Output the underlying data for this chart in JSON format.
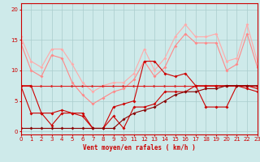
{
  "xlabel": "Vent moyen/en rafales ( km/h )",
  "background_color": "#ceeaea",
  "grid_color": "#aacccc",
  "xlim": [
    0,
    23
  ],
  "ylim": [
    -0.5,
    21
  ],
  "yticks": [
    0,
    5,
    10,
    15,
    20
  ],
  "xticks": [
    0,
    1,
    2,
    3,
    4,
    5,
    6,
    7,
    8,
    9,
    10,
    11,
    12,
    13,
    14,
    15,
    16,
    17,
    18,
    19,
    20,
    21,
    22,
    23
  ],
  "line1_color": "#ffaaaa",
  "line2_color": "#ff8888",
  "line3_color": "#dd2222",
  "line4_color": "#cc0000",
  "line5_color": "#880000",
  "line1_y": [
    15.5,
    11.5,
    10.5,
    13.5,
    13.5,
    11.0,
    8.0,
    6.5,
    7.5,
    8.0,
    8.0,
    9.5,
    13.5,
    10.0,
    12.0,
    15.5,
    17.5,
    15.5,
    15.5,
    16.0,
    11.5,
    12.0,
    17.5,
    11.5
  ],
  "line2_y": [
    14.5,
    10.0,
    9.0,
    12.5,
    12.0,
    8.0,
    6.0,
    4.5,
    5.5,
    6.5,
    7.0,
    8.5,
    11.5,
    9.0,
    10.5,
    14.0,
    16.0,
    14.5,
    14.5,
    14.5,
    10.0,
    11.0,
    16.0,
    10.5
  ],
  "line3_y": [
    7.5,
    7.5,
    7.5,
    7.5,
    7.5,
    7.5,
    7.5,
    7.5,
    7.5,
    7.5,
    7.5,
    7.5,
    7.5,
    7.5,
    7.5,
    7.5,
    7.5,
    7.5,
    7.5,
    7.5,
    7.5,
    7.5,
    7.5,
    7.5
  ],
  "line4_y": [
    7.5,
    7.5,
    3.0,
    1.0,
    3.0,
    3.0,
    2.5,
    0.5,
    0.5,
    4.0,
    4.5,
    5.0,
    11.5,
    11.5,
    9.5,
    9.0,
    9.5,
    7.5,
    7.5,
    7.5,
    7.5,
    7.5,
    7.5,
    7.0
  ],
  "line5_y": [
    7.5,
    3.0,
    3.0,
    3.0,
    3.5,
    3.0,
    3.0,
    0.5,
    0.5,
    2.5,
    0.5,
    4.0,
    4.0,
    4.5,
    6.5,
    6.5,
    6.5,
    7.5,
    4.0,
    4.0,
    4.0,
    7.5,
    7.0,
    6.5
  ],
  "line6_y": [
    0.5,
    0.5,
    0.5,
    0.5,
    0.5,
    0.5,
    0.5,
    0.5,
    0.5,
    0.5,
    2.0,
    3.0,
    3.5,
    4.0,
    5.0,
    6.0,
    6.5,
    6.5,
    7.0,
    7.0,
    7.5,
    7.5,
    7.5,
    7.5
  ]
}
